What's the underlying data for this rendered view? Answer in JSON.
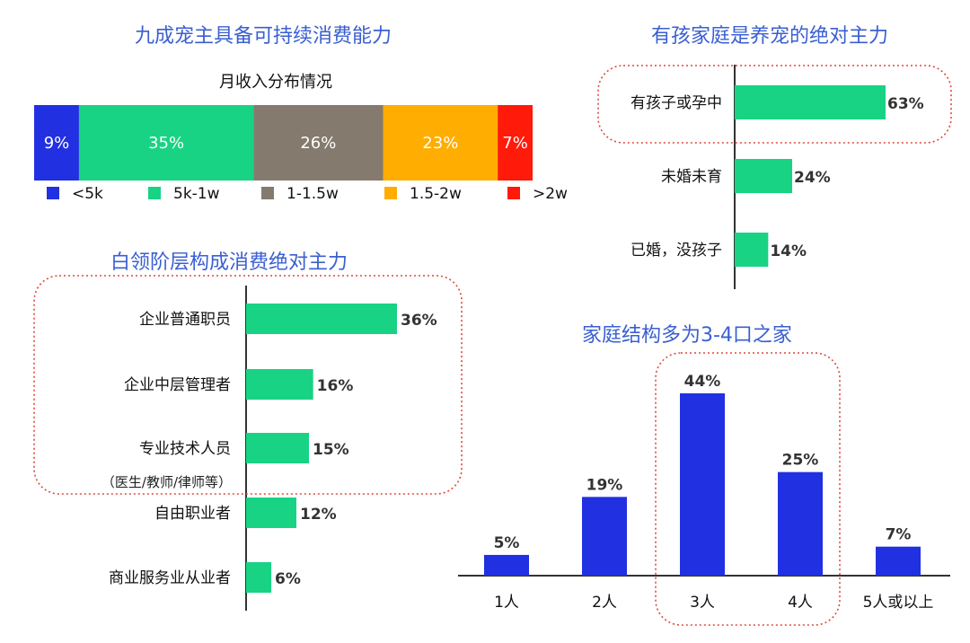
{
  "colors": {
    "blue": "#2130e0",
    "green": "#18d383",
    "gray": "#857a6e",
    "orange": "#ffad00",
    "red": "#ff1a0a",
    "title": "#3a5fd1",
    "highlight": "#e0483a"
  },
  "chart_data": [
    {
      "type": "bar",
      "stacked": true,
      "orientation": "horizontal",
      "title": "九成宠主具备可持续消费能力",
      "subtitle": "月收入分布情况",
      "categories": [
        "<5k",
        "5k-1w",
        "1-1.5w",
        "1.5-2w",
        ">2w"
      ],
      "values": [
        9,
        35,
        26,
        23,
        7
      ],
      "labels": [
        "9%",
        "35%",
        "26%",
        "23%",
        "7%"
      ],
      "legend": [
        "<5k",
        "5k-1w",
        "1-1.5w",
        "1.5-2w",
        ">2w"
      ],
      "legend_position": "bottom"
    },
    {
      "type": "bar",
      "orientation": "horizontal",
      "title": "有孩家庭是养宠的绝对主力",
      "categories": [
        "有孩子或孕中",
        "未婚未育",
        "已婚，没孩子"
      ],
      "values": [
        63,
        24,
        14
      ],
      "labels": [
        "63%",
        "24%",
        "14%"
      ]
    },
    {
      "type": "bar",
      "orientation": "horizontal",
      "title": "白领阶层构成消费绝对主力",
      "categories": [
        "企业普通职员",
        "企业中层管理者",
        "专业技术人员",
        "自由职业者",
        "商业服务业从业者"
      ],
      "values": [
        36,
        16,
        15,
        12,
        6
      ],
      "labels": [
        "36%",
        "16%",
        "15%",
        "12%",
        "6%"
      ],
      "annotation": "（医生/教师/律师等）"
    },
    {
      "type": "bar",
      "orientation": "vertical",
      "title": "家庭结构多为3-4口之家",
      "categories": [
        "1人",
        "2人",
        "3人",
        "4人",
        "5人或以上"
      ],
      "values": [
        5,
        19,
        44,
        25,
        7
      ],
      "labels": [
        "5%",
        "19%",
        "44%",
        "25%",
        "7%"
      ]
    }
  ]
}
